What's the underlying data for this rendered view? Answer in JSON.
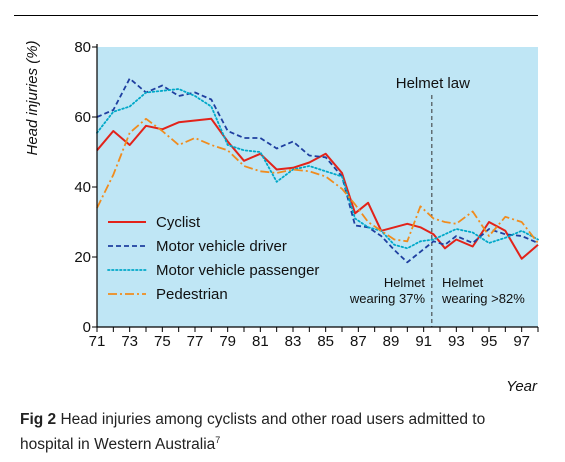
{
  "chart_data": {
    "type": "line",
    "ylabel": "Head injuries (%)",
    "xlabel": "Year",
    "xlim": [
      71,
      98
    ],
    "ylim": [
      0,
      80
    ],
    "x_ticks": [
      71,
      73,
      75,
      77,
      79,
      81,
      83,
      85,
      87,
      89,
      91,
      93,
      95,
      97
    ],
    "y_ticks": [
      0,
      20,
      40,
      60,
      80
    ],
    "legend_position": "bottom-left",
    "grid": false,
    "background": "#bfe6f5",
    "series": [
      {
        "name": "Cyclist",
        "color": "#e2231a",
        "style": "solid",
        "points": [
          [
            71,
            50.5
          ],
          [
            72,
            56
          ],
          [
            73,
            52
          ],
          [
            74,
            57.5
          ],
          [
            75,
            56.5
          ],
          [
            76,
            58.5
          ],
          [
            77,
            59
          ],
          [
            78,
            59.5
          ],
          [
            79,
            53
          ],
          [
            80,
            47.5
          ],
          [
            81,
            49.5
          ],
          [
            82,
            45
          ],
          [
            83,
            45.5
          ],
          [
            84,
            47
          ],
          [
            85,
            49.5
          ],
          [
            86,
            44
          ],
          [
            86.8,
            32.5
          ],
          [
            87.6,
            35.5
          ],
          [
            88.4,
            27.5
          ],
          [
            89.2,
            28.5
          ],
          [
            90,
            29.5
          ],
          [
            90.8,
            28.5
          ],
          [
            91.6,
            26.5
          ],
          [
            92.3,
            22.5
          ],
          [
            93,
            25
          ],
          [
            94,
            23
          ],
          [
            95,
            30
          ],
          [
            96,
            27.5
          ],
          [
            97,
            19.5
          ],
          [
            98,
            23.5
          ]
        ]
      },
      {
        "name": "Motor vehicle driver",
        "color": "#1f3fa0",
        "style": "dashed",
        "points": [
          [
            71,
            60
          ],
          [
            72,
            62
          ],
          [
            73,
            71
          ],
          [
            74,
            67
          ],
          [
            75,
            69
          ],
          [
            76,
            66
          ],
          [
            77,
            67
          ],
          [
            78,
            65
          ],
          [
            79,
            56
          ],
          [
            80,
            54
          ],
          [
            81,
            54
          ],
          [
            82,
            51
          ],
          [
            83,
            53
          ],
          [
            84,
            49
          ],
          [
            85,
            48.5
          ],
          [
            86,
            43
          ],
          [
            86.8,
            29
          ],
          [
            87.6,
            28.5
          ],
          [
            88.4,
            26
          ],
          [
            89.2,
            22
          ],
          [
            90,
            18.5
          ],
          [
            90.8,
            21.5
          ],
          [
            91.6,
            24.5
          ],
          [
            92.3,
            23.5
          ],
          [
            93,
            26
          ],
          [
            94,
            24
          ],
          [
            95,
            28
          ],
          [
            96,
            26.5
          ],
          [
            97,
            26
          ],
          [
            98,
            24
          ]
        ]
      },
      {
        "name": "Motor vehicle passenger",
        "color": "#00a8c8",
        "style": "dotted",
        "points": [
          [
            71,
            55.5
          ],
          [
            72,
            61.5
          ],
          [
            73,
            63
          ],
          [
            74,
            67
          ],
          [
            75,
            67.5
          ],
          [
            76,
            68
          ],
          [
            77,
            66
          ],
          [
            78,
            63
          ],
          [
            79,
            52
          ],
          [
            80,
            50.5
          ],
          [
            81,
            50
          ],
          [
            82,
            41.5
          ],
          [
            83,
            45
          ],
          [
            84,
            46
          ],
          [
            85,
            44.5
          ],
          [
            86,
            43
          ],
          [
            86.8,
            31
          ],
          [
            87.6,
            28.5
          ],
          [
            88.4,
            27.5
          ],
          [
            89.2,
            23.5
          ],
          [
            90,
            22.5
          ],
          [
            90.8,
            24.5
          ],
          [
            91.6,
            25
          ],
          [
            92.3,
            26.5
          ],
          [
            93,
            28
          ],
          [
            94,
            27
          ],
          [
            95,
            24
          ],
          [
            96,
            25.5
          ],
          [
            97,
            27.5
          ],
          [
            98,
            25
          ]
        ]
      },
      {
        "name": "Pedestrian",
        "color": "#f08c1e",
        "style": "dashdot",
        "points": [
          [
            71,
            34
          ],
          [
            72,
            43.5
          ],
          [
            73,
            55.5
          ],
          [
            74,
            59.5
          ],
          [
            75,
            56
          ],
          [
            76,
            52
          ],
          [
            77,
            54
          ],
          [
            78,
            52
          ],
          [
            79,
            50.5
          ],
          [
            80,
            46
          ],
          [
            81,
            44.5
          ],
          [
            82,
            44
          ],
          [
            83,
            45
          ],
          [
            84,
            44.5
          ],
          [
            85,
            43
          ],
          [
            86,
            39.5
          ],
          [
            86.8,
            35
          ],
          [
            87.6,
            30
          ],
          [
            88.4,
            27.5
          ],
          [
            89.2,
            25
          ],
          [
            90,
            24.5
          ],
          [
            90.8,
            34.5
          ],
          [
            91.6,
            31
          ],
          [
            92.3,
            30
          ],
          [
            93,
            29.5
          ],
          [
            94,
            33
          ],
          [
            95,
            26
          ],
          [
            96,
            31.5
          ],
          [
            97,
            30
          ],
          [
            98,
            24
          ]
        ]
      }
    ],
    "annotations": {
      "law_year": 91.5,
      "law_label": "Helmet law",
      "before_line1": "Helmet",
      "before_line2": "wearing 37%",
      "after_line1": "Helmet",
      "after_line2": "wearing >82%"
    }
  },
  "caption": {
    "label": "Fig 2",
    "text": "Head injuries among cyclists and other road users admitted to hospital in Western Australia",
    "ref": "7"
  }
}
